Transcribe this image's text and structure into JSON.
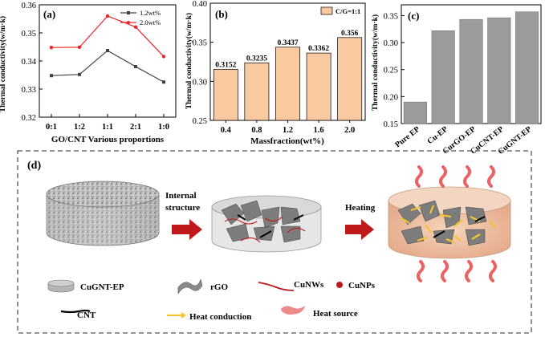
{
  "chart_data": [
    {
      "panel": "(a)",
      "type": "line",
      "title": "",
      "xlabel": "GO/CNT Various proportions",
      "ylabel": "Thermal conductivity(w/m·k)",
      "categories": [
        "0:1",
        "1:2",
        "1:1",
        "2:1",
        "1:0"
      ],
      "ylim": [
        0.32,
        0.36
      ],
      "yticks": [
        "0.32",
        "0.33",
        "0.34",
        "0.35",
        "0.36"
      ],
      "series": [
        {
          "name": "1.2wt%",
          "color": "#404040",
          "marker": "square",
          "values": [
            0.3348,
            0.3352,
            0.3437,
            0.338,
            0.3325
          ]
        },
        {
          "name": "2.0wt%",
          "color": "#e8262a",
          "marker": "circle",
          "values": [
            0.3448,
            0.3449,
            0.356,
            0.3521,
            0.3416
          ]
        }
      ],
      "legend": "top-right"
    },
    {
      "panel": "(b)",
      "type": "bar",
      "title": "",
      "xlabel": "Massfraction(wt%)",
      "ylabel": "Thermal conductivity(w/m·k)",
      "categories": [
        "0.4",
        "0.8",
        "1.2",
        "1.6",
        "2.0"
      ],
      "values": [
        0.3152,
        0.3235,
        0.3437,
        0.3362,
        0.356
      ],
      "labels": [
        "0.3152",
        "0.3235",
        "0.3437",
        "0.3362",
        "0.356"
      ],
      "ylim": [
        0.25,
        0.4
      ],
      "yticks": [
        "0.25",
        "0.30",
        "0.35",
        "0.40"
      ],
      "legend_entry": "C/G=1:1",
      "color": "#f9c9a0"
    },
    {
      "panel": "(c)",
      "type": "bar",
      "title": "",
      "xlabel": "",
      "ylabel": "Thermal conductivity(w/m·k)",
      "categories": [
        "Pure EP",
        "Cu-EP",
        "CurGO-EP",
        "CuCNT-EP",
        "CuGNT-EP"
      ],
      "values": [
        0.19,
        0.322,
        0.343,
        0.346,
        0.357
      ],
      "ylim": [
        0.15,
        0.37
      ],
      "yticks": [
        "0.15",
        "0.20",
        "0.25",
        "0.30",
        "0.35"
      ],
      "color": "#9b9b9b"
    }
  ],
  "schematic": {
    "panel": "(d)",
    "step1_label": "Internal structure",
    "step2_label": "Heating",
    "legend": [
      {
        "name": "CuGNT-EP",
        "icon": "cylinder-icon"
      },
      {
        "name": "rGO",
        "icon": "sheet-icon"
      },
      {
        "name": "CuNWs",
        "icon": "wire-icon"
      },
      {
        "name": "CuNPs",
        "icon": "particle-icon"
      },
      {
        "name": "CNT",
        "icon": "tube-icon"
      },
      {
        "name": "Heat conduction",
        "icon": "arrow-icon"
      },
      {
        "name": "Heat source",
        "icon": "flame-icon"
      }
    ],
    "colors": {
      "arrow": "#c0191b",
      "heat": "#f4c430",
      "flame": "#e8464a",
      "glow": "#e8b896"
    }
  }
}
